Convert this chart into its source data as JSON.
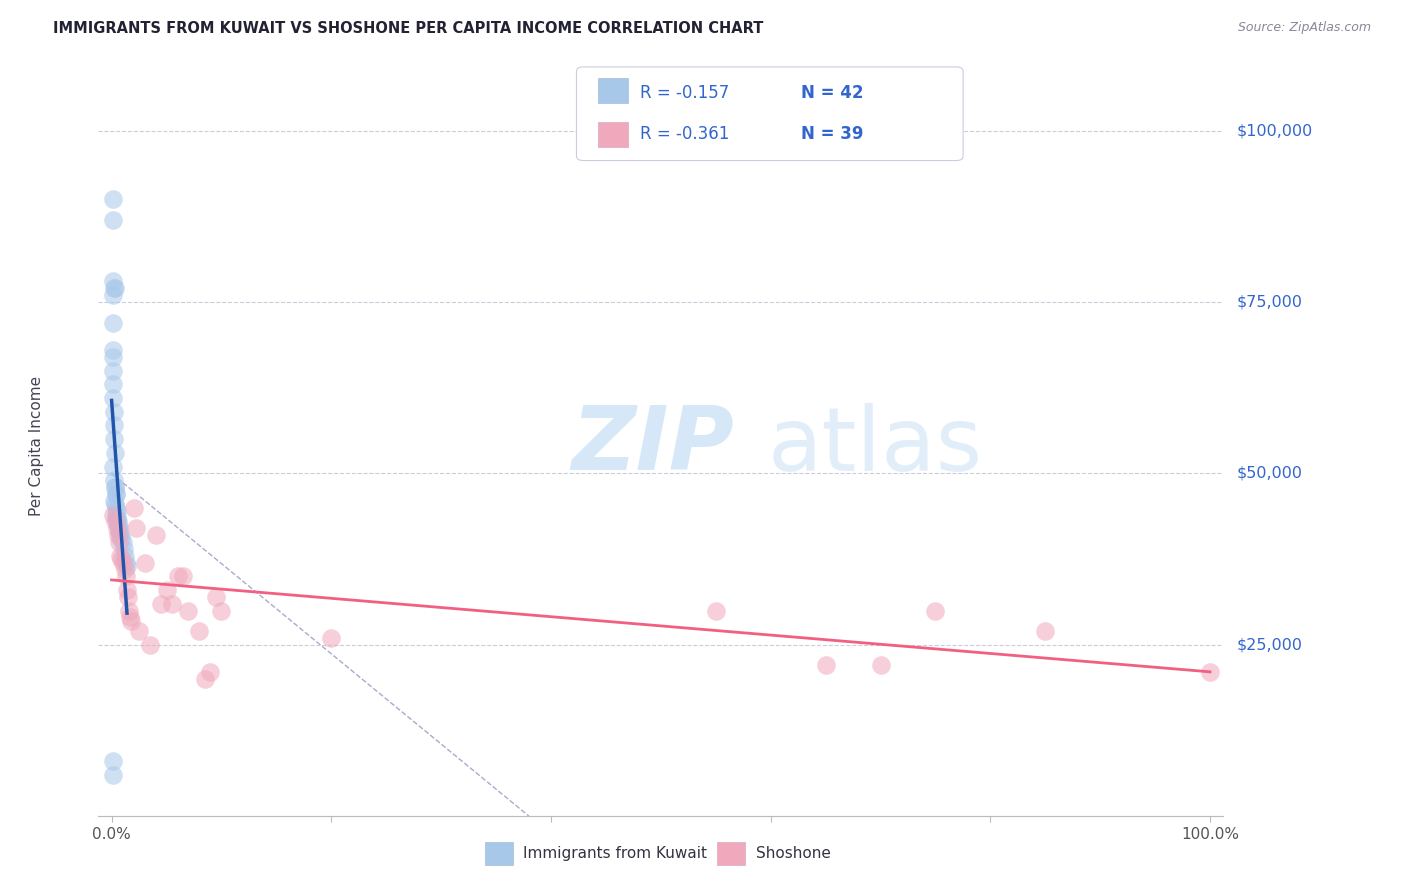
{
  "title": "IMMIGRANTS FROM KUWAIT VS SHOSHONE PER CAPITA INCOME CORRELATION CHART",
  "source": "Source: ZipAtlas.com",
  "ylabel": "Per Capita Income",
  "legend1_label": "Immigrants from Kuwait",
  "legend2_label": "Shoshone",
  "legend1_r": "R = -0.157",
  "legend1_n": "N = 42",
  "legend2_r": "R = -0.361",
  "legend2_n": "N = 39",
  "blue_scatter_color": "#a8c8ea",
  "pink_scatter_color": "#f0a8bc",
  "blue_line_color": "#2255aa",
  "pink_line_color": "#f06080",
  "dash_line_color": "#aaaacc",
  "grid_color": "#ccccdd",
  "bg_color": "#ffffff",
  "right_label_color": "#3366cc",
  "text_color": "#333344",
  "ytick_vals": [
    0,
    25000,
    50000,
    75000,
    100000
  ],
  "ytick_labels": [
    "",
    "$25,000",
    "$50,000",
    "$75,000",
    "$100,000"
  ],
  "kuwait_x": [
    0.001,
    0.001,
    0.001,
    0.002,
    0.001,
    0.003,
    0.001,
    0.001,
    0.001,
    0.001,
    0.001,
    0.001,
    0.002,
    0.002,
    0.002,
    0.003,
    0.001,
    0.002,
    0.003,
    0.004,
    0.003,
    0.004,
    0.002,
    0.003,
    0.004,
    0.005,
    0.004,
    0.005,
    0.005,
    0.006,
    0.006,
    0.007,
    0.007,
    0.008,
    0.009,
    0.01,
    0.011,
    0.012,
    0.013,
    0.014,
    0.001,
    0.001
  ],
  "kuwait_y": [
    90000,
    87000,
    78000,
    77000,
    76000,
    77000,
    72000,
    68000,
    67000,
    65000,
    63000,
    61000,
    59000,
    57000,
    55000,
    53000,
    51000,
    49000,
    48000,
    47000,
    48000,
    47000,
    46000,
    45500,
    45000,
    44500,
    44000,
    43500,
    43000,
    43000,
    42500,
    42000,
    41500,
    41000,
    40500,
    40000,
    39000,
    38000,
    37000,
    36500,
    8000,
    6000
  ],
  "shoshone_x": [
    0.001,
    0.003,
    0.005,
    0.006,
    0.007,
    0.008,
    0.009,
    0.01,
    0.012,
    0.013,
    0.014,
    0.015,
    0.016,
    0.017,
    0.018,
    0.02,
    0.022,
    0.025,
    0.03,
    0.035,
    0.04,
    0.045,
    0.05,
    0.055,
    0.06,
    0.065,
    0.07,
    0.08,
    0.085,
    0.09,
    0.095,
    0.1,
    0.2,
    0.55,
    0.65,
    0.7,
    0.75,
    0.85,
    1.0
  ],
  "shoshone_y": [
    44000,
    43000,
    42000,
    41000,
    40000,
    38000,
    37500,
    37000,
    36000,
    35000,
    33000,
    32000,
    30000,
    29000,
    28500,
    45000,
    42000,
    27000,
    37000,
    25000,
    41000,
    31000,
    33000,
    31000,
    35000,
    35000,
    30000,
    27000,
    20000,
    21000,
    32000,
    30000,
    26000,
    30000,
    22000,
    22000,
    30000,
    27000,
    21000
  ]
}
